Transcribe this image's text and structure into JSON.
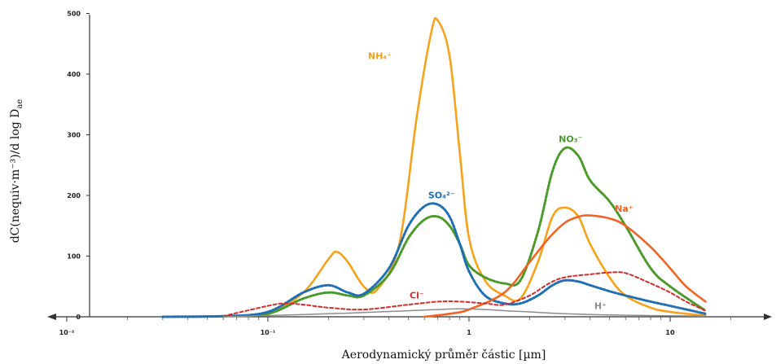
{
  "chart_data": {
    "type": "line",
    "xlabel": "Aerodynamický průměr částic [µm]",
    "ylabel": "dC(nequiv·m⁻³)/d log D",
    "ylabel_sub": "ae",
    "x_scale": "log",
    "xlim": [
      0.01,
      50
    ],
    "ylim": [
      0,
      500
    ],
    "x_ticks": [
      {
        "value": 0.01,
        "label": "10⁻²"
      },
      {
        "value": 0.1,
        "label": "10⁻¹"
      },
      {
        "value": 1,
        "label": "1"
      },
      {
        "value": 10,
        "label": "10"
      }
    ],
    "y_ticks": [
      {
        "value": 0,
        "label": "0"
      },
      {
        "value": 100,
        "label": "100"
      },
      {
        "value": 200,
        "label": "200"
      },
      {
        "value": 300,
        "label": "300"
      },
      {
        "value": 400,
        "label": "400"
      },
      {
        "value": 500,
        "label": "500"
      }
    ],
    "grid": false,
    "series": [
      {
        "name": "NH₄⁺",
        "color": "#f7a21b",
        "style": "solid",
        "label_at": [
          0.36,
          425
        ],
        "x": [
          0.03,
          0.06,
          0.1,
          0.15,
          0.2,
          0.22,
          0.25,
          0.3,
          0.35,
          0.45,
          0.55,
          0.65,
          0.7,
          0.8,
          0.9,
          1.0,
          1.2,
          1.5,
          1.8,
          2.2,
          2.6,
          3.0,
          3.5,
          4.0,
          5.0,
          6.0,
          8.0,
          10.0,
          15.0
        ],
        "y": [
          0,
          1,
          5,
          40,
          95,
          107,
          90,
          50,
          45,
          120,
          330,
          470,
          488,
          430,
          270,
          130,
          60,
          35,
          30,
          90,
          165,
          180,
          165,
          120,
          65,
          35,
          15,
          8,
          2
        ]
      },
      {
        "name": "NO₃⁻",
        "color": "#4a9a2a",
        "style": "dotted",
        "label_at": [
          3.2,
          288
        ],
        "x": [
          0.03,
          0.06,
          0.1,
          0.15,
          0.2,
          0.25,
          0.3,
          0.4,
          0.5,
          0.6,
          0.7,
          0.8,
          0.9,
          1.0,
          1.2,
          1.5,
          1.8,
          2.2,
          2.6,
          3.0,
          3.5,
          4.0,
          5.0,
          6.0,
          8.0,
          10.0,
          15.0
        ],
        "y": [
          0,
          1,
          5,
          30,
          40,
          35,
          35,
          70,
          130,
          160,
          165,
          150,
          120,
          85,
          65,
          55,
          60,
          140,
          240,
          278,
          265,
          225,
          190,
          150,
          80,
          50,
          10
        ]
      },
      {
        "name": "SO₄²⁻",
        "color": "#1f6fb5",
        "style": "dotted",
        "label_at": [
          0.73,
          195
        ],
        "x": [
          0.03,
          0.06,
          0.1,
          0.15,
          0.2,
          0.25,
          0.3,
          0.4,
          0.5,
          0.6,
          0.7,
          0.8,
          0.9,
          1.0,
          1.2,
          1.5,
          1.8,
          2.2,
          2.6,
          3.0,
          3.5,
          4.0,
          5.0,
          6.0,
          8.0,
          10.0,
          15.0
        ],
        "y": [
          0,
          1,
          8,
          40,
          52,
          40,
          38,
          80,
          150,
          182,
          185,
          165,
          120,
          75,
          35,
          22,
          22,
          35,
          52,
          60,
          58,
          52,
          42,
          35,
          25,
          18,
          5
        ]
      },
      {
        "name": "Na⁺",
        "color": "#f06424",
        "style": "solid",
        "label_at": [
          5.9,
          173
        ],
        "x": [
          0.6,
          0.8,
          1.0,
          1.5,
          2.0,
          2.5,
          3.0,
          3.5,
          4.0,
          5.0,
          6.0,
          8.0,
          10.0,
          12.0,
          15.0
        ],
        "y": [
          0,
          5,
          12,
          40,
          90,
          130,
          155,
          165,
          167,
          162,
          150,
          115,
          80,
          50,
          25
        ]
      },
      {
        "name": "Cl⁻",
        "color": "#d62d2d",
        "style": "dashed",
        "label_at": [
          0.55,
          30
        ],
        "x": [
          0.06,
          0.1,
          0.12,
          0.15,
          0.2,
          0.3,
          0.5,
          0.7,
          0.9,
          1.2,
          1.5,
          2.0,
          2.5,
          3.0,
          4.0,
          5.0,
          6.0,
          8.0,
          10.0,
          12.0,
          15.0
        ],
        "y": [
          1,
          18,
          22,
          20,
          15,
          12,
          20,
          25,
          25,
          22,
          20,
          35,
          55,
          65,
          70,
          73,
          72,
          55,
          40,
          25,
          10
        ]
      },
      {
        "name": "H⁺",
        "color": "#8c8c8c",
        "style": "solid",
        "label_at": [
          4.5,
          13
        ],
        "x": [
          0.06,
          0.1,
          0.2,
          0.3,
          0.5,
          0.7,
          0.9,
          1.2,
          1.5,
          2.0,
          3.0,
          5.0,
          8.0,
          15.0
        ],
        "y": [
          0,
          2,
          5,
          7,
          10,
          12,
          13,
          12,
          10,
          8,
          5,
          3,
          2,
          1
        ]
      }
    ]
  }
}
